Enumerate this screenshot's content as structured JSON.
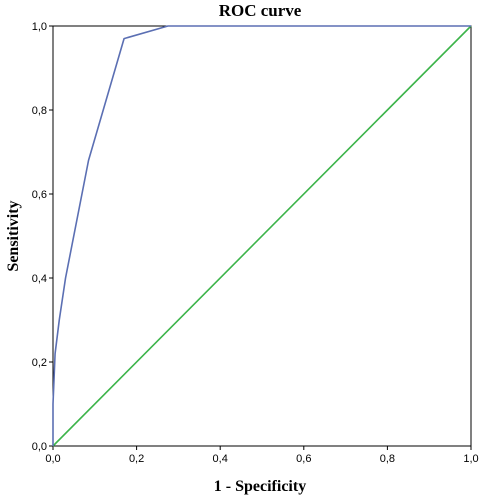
{
  "chart_data": {
    "type": "line",
    "title": "ROC curve",
    "xlabel": "1 - Specificity",
    "ylabel": "Sensitivity",
    "xlim": [
      0,
      1
    ],
    "ylim": [
      0,
      1
    ],
    "x_ticks": [
      "0,0",
      "0,2",
      "0,4",
      "0,6",
      "0,8",
      "1,0"
    ],
    "y_ticks": [
      "0,0",
      "0,2",
      "0,4",
      "0,6",
      "0,8",
      "1,0"
    ],
    "grid": false,
    "series": [
      {
        "color": "#5b6fb3",
        "x": [
          0.0,
          0.0,
          0.005,
          0.015,
          0.03,
          0.085,
          0.17,
          0.275,
          1.0
        ],
        "y": [
          0.0,
          0.1,
          0.22,
          0.3,
          0.4,
          0.68,
          0.97,
          1.0,
          1.0
        ]
      },
      {
        "color": "#3cb44a",
        "x": [
          0.0,
          1.0
        ],
        "y": [
          0.0,
          1.0
        ]
      }
    ]
  }
}
